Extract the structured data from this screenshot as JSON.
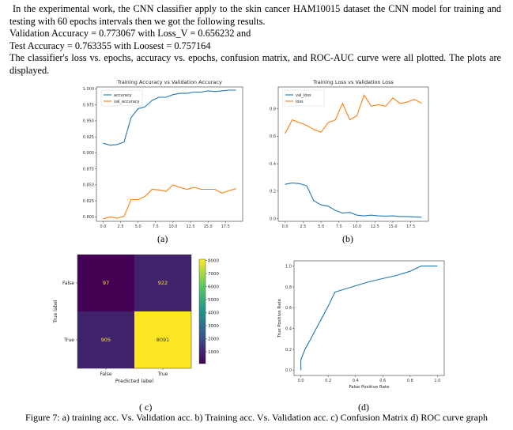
{
  "paragraph": {
    "line1": "In the experimental work, the CNN classifier apply to the skin cancer HAM10015 dataset the CNN model for training and testing with 60 epochs intervals then we got the following results.",
    "line2": "Validation Accuracy = 0.773067 with Loss_V = 0.656232 and",
    "line3": "Test Accuracy = 0.763355 with Loosest = 0.757164",
    "line4": "The classifier's loss vs. epochs, accuracy vs. epochs, confusion matrix, and ROC-AUC curve were all plotted. The plots are displayed."
  },
  "labels": {
    "a": "(a)",
    "b": "(b)",
    "c": "( c)",
    "d": "(d)"
  },
  "caption": "Figure 7: a) training acc. Vs. Validation acc. b) Training acc. Vs. Validation acc. c) Confusion Matrix d) ROC curve graph",
  "chart_data": [
    {
      "type": "line",
      "title": "Training Accuracy vs Validation Accuracy",
      "x": [
        0,
        1,
        2,
        3,
        4,
        5,
        6,
        7,
        8,
        9,
        10,
        11,
        12,
        13,
        14,
        15,
        16,
        17,
        18,
        19
      ],
      "xticks": [
        "0.0",
        "2.5",
        "5.0",
        "7.5",
        "10.0",
        "12.5",
        "15.0",
        "17.5"
      ],
      "yticks": [
        "0.800",
        "0.825",
        "0.850",
        "0.875",
        "0.900",
        "0.925",
        "0.950",
        "0.975",
        "1.000"
      ],
      "ylim": [
        0.793,
        1.003
      ],
      "legend": "top-left",
      "series": [
        {
          "name": "accuracy",
          "color": "#1f77b4",
          "values": [
            0.915,
            0.912,
            0.913,
            0.917,
            0.955,
            0.969,
            0.972,
            0.982,
            0.987,
            0.987,
            0.991,
            0.993,
            0.993,
            0.995,
            0.995,
            0.997,
            0.996,
            0.997,
            0.998,
            0.998
          ]
        },
        {
          "name": "val_accuracy",
          "color": "#ff7f0e",
          "values": [
            0.797,
            0.8,
            0.798,
            0.801,
            0.827,
            0.827,
            0.832,
            0.843,
            0.842,
            0.84,
            0.85,
            0.846,
            0.843,
            0.846,
            0.843,
            0.843,
            0.843,
            0.837,
            0.841,
            0.844
          ]
        }
      ]
    },
    {
      "type": "line",
      "title": "Training Loss vs Validation Loss",
      "x": [
        0,
        1,
        2,
        3,
        4,
        5,
        6,
        7,
        8,
        9,
        10,
        11,
        12,
        13,
        14,
        15,
        16,
        17,
        18,
        19
      ],
      "xticks": [
        "0.0",
        "2.5",
        "5.0",
        "7.5",
        "10.0",
        "12.5",
        "15.0",
        "17.5"
      ],
      "yticks": [
        "0.0",
        "0.2",
        "0.4",
        "0.6",
        "0.8"
      ],
      "ylim": [
        -0.02,
        0.96
      ],
      "legend": "top-left",
      "series": [
        {
          "name": "val_loss",
          "color": "#1f77b4",
          "values": [
            0.25,
            0.26,
            0.255,
            0.24,
            0.13,
            0.1,
            0.09,
            0.06,
            0.04,
            0.045,
            0.025,
            0.02,
            0.025,
            0.02,
            0.018,
            0.02,
            0.015,
            0.015,
            0.012,
            0.01
          ]
        },
        {
          "name": "loss",
          "color": "#ff7f0e",
          "values": [
            0.62,
            0.72,
            0.7,
            0.68,
            0.65,
            0.63,
            0.7,
            0.72,
            0.84,
            0.72,
            0.75,
            0.9,
            0.82,
            0.83,
            0.82,
            0.88,
            0.84,
            0.85,
            0.87,
            0.84
          ]
        }
      ]
    },
    {
      "type": "heatmap",
      "xlabel": "Predicted label",
      "ylabel": "True label",
      "x_categories": [
        "False",
        "True"
      ],
      "y_categories": [
        "False",
        "True"
      ],
      "values": [
        [
          97,
          922
        ],
        [
          905,
          8091
        ]
      ],
      "colorbar_ticks": [
        "1000",
        "2000",
        "3000",
        "4000",
        "5000",
        "6000",
        "7000",
        "8000"
      ],
      "colorbar_range": [
        97,
        8091
      ]
    },
    {
      "type": "line",
      "xlabel": "False Positive Rate",
      "ylabel": "True Positive Rate",
      "xlim": [
        0,
        1
      ],
      "ylim": [
        0,
        1
      ],
      "xticks": [
        "0.0",
        "0.2",
        "0.4",
        "0.6",
        "0.8",
        "1.0"
      ],
      "yticks": [
        "0.0",
        "0.2",
        "0.4",
        "0.6",
        "0.8",
        "1.0"
      ],
      "series": [
        {
          "color": "#1f77b4",
          "x": [
            0,
            0,
            0.03,
            0.08,
            0.12,
            0.17,
            0.21,
            0.25,
            0.3,
            0.4,
            0.5,
            0.6,
            0.7,
            0.8,
            0.88,
            0.92,
            1.0
          ],
          "y": [
            0,
            0.1,
            0.2,
            0.32,
            0.42,
            0.54,
            0.64,
            0.75,
            0.77,
            0.81,
            0.85,
            0.88,
            0.91,
            0.95,
            1.0,
            1.0,
            1.0
          ]
        }
      ]
    }
  ]
}
